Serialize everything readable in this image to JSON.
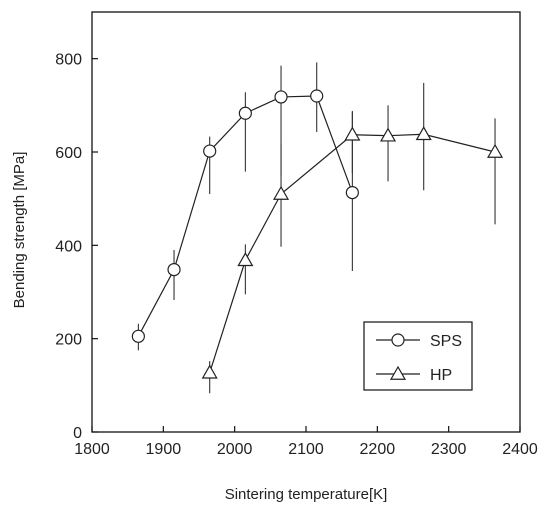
{
  "chart_data": {
    "type": "line",
    "title": "",
    "xlabel": "Sintering temperature[K]",
    "ylabel": "Bending strength [MPa]",
    "xlim": [
      1800,
      2400
    ],
    "ylim": [
      0,
      900
    ],
    "xticks": [
      1800,
      1900,
      2000,
      2100,
      2200,
      2300,
      2400
    ],
    "yticks": [
      0,
      200,
      400,
      600,
      800
    ],
    "grid": false,
    "legend_position": "lower-right",
    "series": [
      {
        "name": "SPS",
        "marker": "circle",
        "points": [
          {
            "x": 1865,
            "y": 205,
            "err_low": 175,
            "err_high": 232
          },
          {
            "x": 1915,
            "y": 348,
            "err_low": 283,
            "err_high": 390
          },
          {
            "x": 1965,
            "y": 602,
            "err_low": 510,
            "err_high": 633
          },
          {
            "x": 2015,
            "y": 683,
            "err_low": 558,
            "err_high": 728
          },
          {
            "x": 2065,
            "y": 718,
            "err_low": 548,
            "err_high": 785
          },
          {
            "x": 2115,
            "y": 720,
            "err_low": 643,
            "err_high": 792
          },
          {
            "x": 2165,
            "y": 513,
            "err_low": 345,
            "err_high": 685
          }
        ]
      },
      {
        "name": "HP",
        "marker": "triangle",
        "points": [
          {
            "x": 1965,
            "y": 127,
            "err_low": 83,
            "err_high": 152
          },
          {
            "x": 2015,
            "y": 368,
            "err_low": 295,
            "err_high": 402
          },
          {
            "x": 2065,
            "y": 510,
            "err_low": 397,
            "err_high": 618
          },
          {
            "x": 2165,
            "y": 637,
            "err_low": 555,
            "err_high": 688
          },
          {
            "x": 2215,
            "y": 635,
            "err_low": 537,
            "err_high": 700
          },
          {
            "x": 2265,
            "y": 638,
            "err_low": 518,
            "err_high": 748
          },
          {
            "x": 2365,
            "y": 600,
            "err_low": 445,
            "err_high": 672
          }
        ]
      }
    ]
  }
}
